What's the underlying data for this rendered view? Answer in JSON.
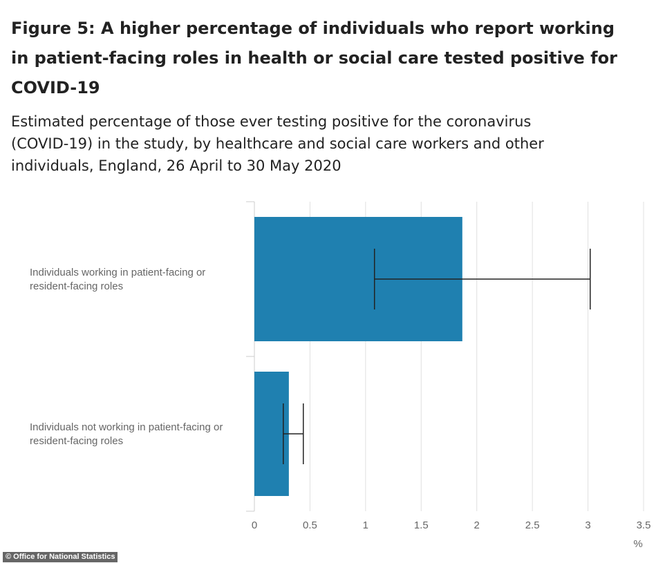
{
  "figure": {
    "title": "Figure 5: A higher percentage of individuals who report working in patient-facing roles in health or social care tested positive for COVID-19",
    "subtitle": "Estimated percentage of those ever testing positive for the coronavirus (COVID-19) in the study, by healthcare and social care workers and other individuals, England, 26 April to 30 May 2020"
  },
  "chart_data": {
    "type": "bar",
    "orientation": "horizontal",
    "categories": [
      [
        "Individuals working in patient-facing or",
        "resident-facing roles"
      ],
      [
        "Individuals not working in patient-facing or",
        "resident-facing roles"
      ]
    ],
    "series": [
      {
        "values": [
          1.87,
          0.31
        ],
        "error_low": [
          1.08,
          0.26
        ],
        "error_high": [
          3.02,
          0.44
        ]
      }
    ],
    "xlabel": "%",
    "xlim": [
      0,
      3.5
    ],
    "xticks": [
      "0",
      "0.5",
      "1",
      "1.5",
      "2",
      "2.5",
      "3",
      "3.5"
    ],
    "grid": true,
    "colors": {
      "bar": "#1f80b0",
      "error_bar": "#222222",
      "grid": "#e0e0e0",
      "axis_text": "#666666"
    }
  },
  "credit": "© Office for National Statistics"
}
